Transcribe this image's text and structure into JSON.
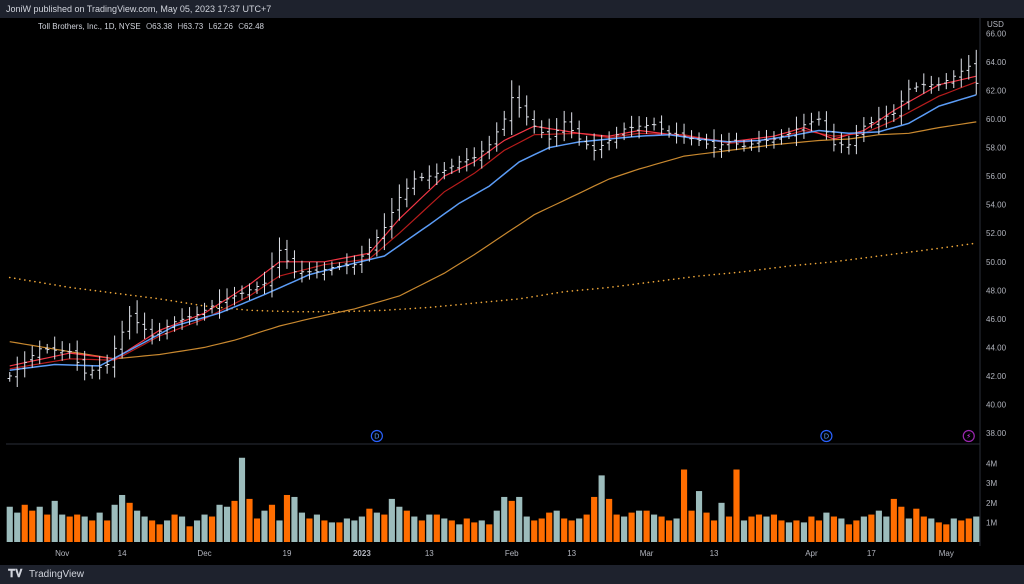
{
  "header": {
    "published": "JoniW published on TradingView.com, May 05, 2023 17:37 UTC+7"
  },
  "footer": {
    "brand": "TradingView",
    "logo_icon": "tradingview-logo-icon"
  },
  "legend": {
    "symbol": "Toll Brothers, Inc., 1D, NYSE",
    "open_label": "O",
    "open": "63.38",
    "high_label": "H",
    "high": "63.73",
    "low_label": "L",
    "low": "62.26",
    "close_label": "C",
    "close": "62.48"
  },
  "colors": {
    "background": "#000000",
    "bar": "#e0e3eb",
    "ema_fast": "#b71c1c",
    "ema_mid": "#f23645",
    "ema_blue": "#5b9cf6",
    "ma_orange": "#c8882f",
    "ma_dotted": "#f0a83a",
    "vol_up": "#9cbcbc",
    "vol_down": "#ff6d00",
    "event_marker": "#2962ff"
  },
  "chart_data": {
    "type": "ohlc",
    "currency": "USD",
    "price_ylim": [
      37.3,
      66.8
    ],
    "price_ticks": [
      "66.00",
      "64.00",
      "62.00",
      "60.00",
      "58.00",
      "56.00",
      "54.00",
      "52.00",
      "50.00",
      "48.00",
      "46.00",
      "44.00",
      "42.00",
      "40.00",
      "38.00"
    ],
    "volume_ylim": [
      0,
      4.9
    ],
    "volume_ticks": [
      "4M",
      "3M",
      "2M",
      "1M"
    ],
    "x_ticks": [
      "Nov",
      "14",
      "Dec",
      "19",
      "2023",
      "13",
      "Feb",
      "13",
      "Mar",
      "13",
      "Apr",
      "17",
      "May"
    ],
    "x_tick_bars": [
      7,
      15,
      26,
      37,
      47,
      56,
      67,
      75,
      85,
      94,
      107,
      115,
      125
    ],
    "bar_count": 130,
    "event_markers": [
      {
        "label": "D",
        "bar": 49
      },
      {
        "label": "D",
        "bar": 109
      },
      {
        "label": "⚡",
        "bar": 128
      }
    ],
    "close_anchors": [
      [
        0,
        42.0
      ],
      [
        4,
        43.9
      ],
      [
        8,
        43.7
      ],
      [
        10,
        42.2
      ],
      [
        13,
        42.8
      ],
      [
        16,
        46.2
      ],
      [
        19,
        44.8
      ],
      [
        22,
        45.8
      ],
      [
        25,
        46.3
      ],
      [
        28,
        47.2
      ],
      [
        31,
        47.8
      ],
      [
        34,
        48.5
      ],
      [
        36,
        50.8
      ],
      [
        38,
        49.3
      ],
      [
        41,
        49.3
      ],
      [
        43,
        49.6
      ],
      [
        46,
        49.8
      ],
      [
        48,
        51.0
      ],
      [
        50,
        52.4
      ],
      [
        52,
        54.5
      ],
      [
        54,
        55.8
      ],
      [
        56,
        56.0
      ],
      [
        58,
        56.4
      ],
      [
        60,
        57.0
      ],
      [
        62,
        57.3
      ],
      [
        64,
        58.2
      ],
      [
        66,
        60.0
      ],
      [
        67,
        61.5
      ],
      [
        68,
        60.8
      ],
      [
        70,
        59.5
      ],
      [
        72,
        58.6
      ],
      [
        74,
        59.8
      ],
      [
        76,
        58.6
      ],
      [
        78,
        57.8
      ],
      [
        80,
        58.5
      ],
      [
        82,
        59.3
      ],
      [
        84,
        59.5
      ],
      [
        86,
        59.6
      ],
      [
        88,
        59.0
      ],
      [
        90,
        58.8
      ],
      [
        92,
        58.5
      ],
      [
        94,
        58.0
      ],
      [
        96,
        58.4
      ],
      [
        98,
        58.1
      ],
      [
        100,
        58.4
      ],
      [
        102,
        58.6
      ],
      [
        104,
        59.0
      ],
      [
        106,
        59.6
      ],
      [
        108,
        60.0
      ],
      [
        110,
        58.2
      ],
      [
        112,
        58.2
      ],
      [
        114,
        59.5
      ],
      [
        116,
        60.0
      ],
      [
        118,
        60.4
      ],
      [
        120,
        62.1
      ],
      [
        122,
        62.4
      ],
      [
        124,
        62.4
      ],
      [
        126,
        63.0
      ],
      [
        128,
        63.7
      ],
      [
        129,
        62.5
      ]
    ],
    "ema_fast_anchors": [
      [
        0,
        42.7
      ],
      [
        8,
        43.6
      ],
      [
        14,
        43.2
      ],
      [
        20,
        45.2
      ],
      [
        26,
        46.4
      ],
      [
        32,
        48.4
      ],
      [
        36,
        50.0
      ],
      [
        42,
        50.0
      ],
      [
        48,
        50.6
      ],
      [
        52,
        53.0
      ],
      [
        58,
        56.0
      ],
      [
        62,
        57.0
      ],
      [
        66,
        58.5
      ],
      [
        70,
        59.5
      ],
      [
        76,
        59.0
      ],
      [
        80,
        58.8
      ],
      [
        84,
        59.2
      ],
      [
        90,
        58.8
      ],
      [
        96,
        58.4
      ],
      [
        102,
        58.8
      ],
      [
        106,
        59.4
      ],
      [
        110,
        58.6
      ],
      [
        114,
        59.2
      ],
      [
        118,
        60.6
      ],
      [
        124,
        62.4
      ],
      [
        129,
        63.0
      ]
    ],
    "ema_mid_anchors": [
      [
        0,
        42.5
      ],
      [
        8,
        43.2
      ],
      [
        14,
        43.1
      ],
      [
        20,
        44.8
      ],
      [
        26,
        46.0
      ],
      [
        32,
        47.6
      ],
      [
        36,
        49.0
      ],
      [
        42,
        49.8
      ],
      [
        48,
        50.2
      ],
      [
        52,
        52.0
      ],
      [
        58,
        54.9
      ],
      [
        62,
        56.2
      ],
      [
        66,
        57.8
      ],
      [
        70,
        58.9
      ],
      [
        76,
        59.0
      ],
      [
        80,
        58.7
      ],
      [
        84,
        59.0
      ],
      [
        90,
        58.9
      ],
      [
        96,
        58.3
      ],
      [
        102,
        58.6
      ],
      [
        106,
        59.2
      ],
      [
        110,
        58.8
      ],
      [
        114,
        59.0
      ],
      [
        118,
        59.9
      ],
      [
        124,
        61.6
      ],
      [
        129,
        62.6
      ]
    ],
    "ema_blue_anchors": [
      [
        0,
        42.4
      ],
      [
        6,
        42.8
      ],
      [
        12,
        42.7
      ],
      [
        16,
        43.8
      ],
      [
        22,
        45.5
      ],
      [
        28,
        46.4
      ],
      [
        34,
        47.7
      ],
      [
        40,
        49.1
      ],
      [
        46,
        49.9
      ],
      [
        50,
        50.4
      ],
      [
        56,
        52.6
      ],
      [
        60,
        54.1
      ],
      [
        64,
        55.3
      ],
      [
        68,
        57.0
      ],
      [
        72,
        58.0
      ],
      [
        76,
        58.4
      ],
      [
        80,
        58.6
      ],
      [
        84,
        58.8
      ],
      [
        88,
        58.9
      ],
      [
        92,
        58.6
      ],
      [
        96,
        58.4
      ],
      [
        100,
        58.5
      ],
      [
        104,
        58.8
      ],
      [
        108,
        59.2
      ],
      [
        112,
        59.0
      ],
      [
        116,
        59.1
      ],
      [
        120,
        59.7
      ],
      [
        124,
        60.9
      ],
      [
        129,
        61.7
      ]
    ],
    "ma_orange_anchors": [
      [
        0,
        44.4
      ],
      [
        8,
        43.7
      ],
      [
        14,
        43.2
      ],
      [
        20,
        43.5
      ],
      [
        26,
        44.0
      ],
      [
        30,
        44.5
      ],
      [
        36,
        45.5
      ],
      [
        40,
        46.0
      ],
      [
        46,
        46.7
      ],
      [
        52,
        47.6
      ],
      [
        58,
        49.2
      ],
      [
        62,
        50.5
      ],
      [
        66,
        51.9
      ],
      [
        70,
        53.3
      ],
      [
        76,
        54.8
      ],
      [
        80,
        55.8
      ],
      [
        84,
        56.5
      ],
      [
        90,
        57.4
      ],
      [
        96,
        57.8
      ],
      [
        102,
        58.2
      ],
      [
        108,
        58.5
      ],
      [
        112,
        58.6
      ],
      [
        116,
        58.9
      ],
      [
        120,
        59.0
      ],
      [
        124,
        59.4
      ],
      [
        129,
        59.8
      ]
    ],
    "ma_dotted_anchors": [
      [
        0,
        48.9
      ],
      [
        8,
        48.2
      ],
      [
        14,
        47.8
      ],
      [
        20,
        47.4
      ],
      [
        26,
        46.9
      ],
      [
        32,
        46.6
      ],
      [
        38,
        46.5
      ],
      [
        44,
        46.5
      ],
      [
        50,
        46.6
      ],
      [
        56,
        46.8
      ],
      [
        62,
        47.1
      ],
      [
        68,
        47.4
      ],
      [
        74,
        47.9
      ],
      [
        80,
        48.2
      ],
      [
        86,
        48.6
      ],
      [
        92,
        49.0
      ],
      [
        98,
        49.3
      ],
      [
        104,
        49.7
      ],
      [
        110,
        50.0
      ],
      [
        116,
        50.4
      ],
      [
        122,
        50.8
      ],
      [
        129,
        51.3
      ]
    ],
    "volume_m": [
      1.8,
      1.5,
      1.9,
      1.6,
      1.8,
      1.4,
      2.1,
      1.4,
      1.3,
      1.4,
      1.3,
      1.1,
      1.5,
      1.1,
      1.9,
      2.4,
      2.0,
      1.6,
      1.3,
      1.1,
      0.9,
      1.1,
      1.4,
      1.3,
      0.8,
      1.1,
      1.4,
      1.3,
      1.9,
      1.8,
      2.1,
      4.3,
      2.2,
      1.2,
      1.6,
      1.9,
      1.1,
      2.4,
      2.3,
      1.5,
      1.2,
      1.4,
      1.1,
      1.0,
      1.0,
      1.2,
      1.1,
      1.3,
      1.7,
      1.5,
      1.4,
      2.2,
      1.8,
      1.6,
      1.3,
      1.1,
      1.4,
      1.4,
      1.2,
      1.1,
      0.9,
      1.2,
      1.0,
      1.1,
      0.9,
      1.6,
      2.3,
      2.1,
      2.3,
      1.3,
      1.1,
      1.2,
      1.5,
      1.6,
      1.2,
      1.1,
      1.2,
      1.4,
      2.3,
      3.4,
      2.2,
      1.4,
      1.3,
      1.5,
      1.6,
      1.6,
      1.4,
      1.3,
      1.1,
      1.2,
      3.7,
      1.6,
      2.6,
      1.5,
      1.1,
      2.0,
      1.3,
      3.7,
      1.1,
      1.3,
      1.4,
      1.3,
      1.4,
      1.1,
      1.0,
      1.1,
      1.0,
      1.3,
      1.1,
      1.5,
      1.3,
      1.2,
      0.9,
      1.1,
      1.3,
      1.4,
      1.6,
      1.3,
      2.2,
      1.8,
      1.2,
      1.7,
      1.3,
      1.2,
      1.0,
      0.9,
      1.2,
      1.1,
      1.2,
      1.3
    ],
    "volume_down": [
      0,
      0,
      1,
      1,
      0,
      1,
      0,
      0,
      1,
      1,
      0,
      1,
      0,
      1,
      0,
      0,
      1,
      0,
      0,
      1,
      1,
      0,
      1,
      0,
      1,
      0,
      0,
      1,
      0,
      0,
      1,
      0,
      1,
      1,
      0,
      1,
      0,
      1,
      0,
      0,
      1,
      0,
      1,
      0,
      1,
      0,
      0,
      0,
      1,
      0,
      1,
      0,
      0,
      1,
      0,
      1,
      0,
      1,
      0,
      1,
      0,
      1,
      1,
      0,
      1,
      0,
      0,
      1,
      0,
      0,
      1,
      1,
      1,
      0,
      1,
      1,
      0,
      1,
      1,
      0,
      1,
      1,
      0,
      1,
      0,
      1,
      0,
      1,
      1,
      0,
      1,
      1,
      0,
      1,
      1,
      0,
      1,
      1,
      0,
      1,
      1,
      0,
      1,
      1,
      0,
      1,
      0,
      1,
      1,
      0,
      1,
      0,
      1,
      1,
      0,
      1,
      0,
      0,
      1,
      1,
      0,
      1,
      1,
      0,
      1,
      1,
      0,
      1,
      1,
      0
    ]
  }
}
